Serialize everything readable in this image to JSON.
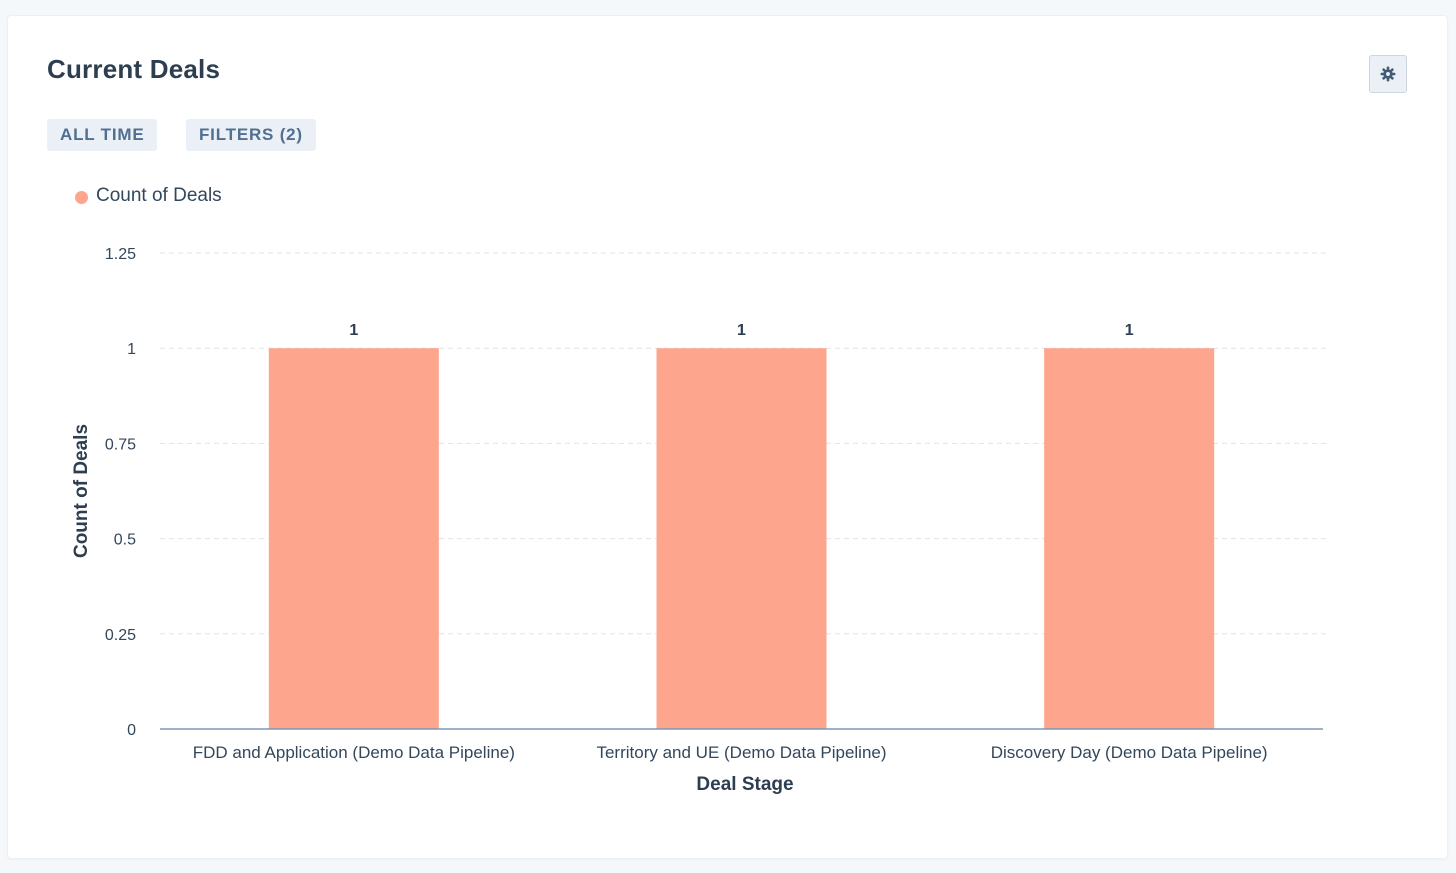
{
  "header": {
    "title": "Current Deals",
    "settings_icon": "gear-icon"
  },
  "filters": {
    "date_range": "ALL TIME",
    "filters_label": "FILTERS (2)"
  },
  "colors": {
    "bar": "#fea58e",
    "axis": "#7c98b6",
    "grid": "#dfe3eb"
  },
  "chart_data": {
    "type": "bar",
    "categories": [
      "FDD and Application (Demo Data Pipeline)",
      "Territory and UE (Demo Data Pipeline)",
      "Discovery Day (Demo Data Pipeline)"
    ],
    "series": [
      {
        "name": "Count of Deals",
        "values": [
          1,
          1,
          1
        ]
      }
    ],
    "data_labels": [
      "1",
      "1",
      "1"
    ],
    "xlabel": "Deal Stage",
    "ylabel": "Count of Deals",
    "ylim": [
      0,
      1.25
    ],
    "yticks": [
      0,
      0.25,
      0.5,
      0.75,
      1,
      1.25
    ],
    "ytick_labels": [
      "0",
      "0.25",
      "0.5",
      "0.75",
      "1",
      "1.25"
    ],
    "grid": true,
    "legend": "top-left"
  }
}
